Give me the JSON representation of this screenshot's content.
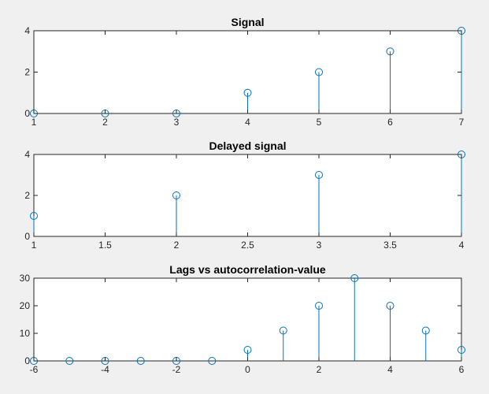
{
  "colors": {
    "series": "#0072bd",
    "background": "#f0f0f0",
    "axes": "#262626"
  },
  "chart_data": [
    {
      "type": "stem",
      "title": "Signal",
      "xlabel": "",
      "ylabel": "",
      "xlim": [
        1,
        7
      ],
      "ylim": [
        0,
        4
      ],
      "xticks": [
        1,
        2,
        3,
        4,
        5,
        6,
        7
      ],
      "xtick_labels": [
        "1",
        "2",
        "3",
        "4",
        "5",
        "6",
        "7"
      ],
      "yticks": [
        0,
        2,
        4
      ],
      "ytick_labels": [
        "0",
        "2",
        "4"
      ],
      "grid": false,
      "x": [
        1,
        2,
        3,
        4,
        5,
        6,
        7
      ],
      "y": [
        0,
        0,
        0,
        1,
        2,
        3,
        4
      ]
    },
    {
      "type": "stem",
      "title": "Delayed signal",
      "xlabel": "",
      "ylabel": "",
      "xlim": [
        1,
        4
      ],
      "ylim": [
        0,
        4
      ],
      "xticks": [
        1,
        1.5,
        2,
        2.5,
        3,
        3.5,
        4
      ],
      "xtick_labels": [
        "1",
        "1.5",
        "2",
        "2.5",
        "3",
        "3.5",
        "4"
      ],
      "yticks": [
        0,
        2,
        4
      ],
      "ytick_labels": [
        "0",
        "2",
        "4"
      ],
      "grid": false,
      "x": [
        1,
        2,
        3,
        4
      ],
      "y": [
        1,
        2,
        3,
        4
      ]
    },
    {
      "type": "stem",
      "title": "Lags vs autocorrelation-value",
      "xlabel": "",
      "ylabel": "",
      "xlim": [
        -6,
        6
      ],
      "ylim": [
        0,
        30
      ],
      "xticks": [
        -6,
        -4,
        -2,
        0,
        2,
        4,
        6
      ],
      "xtick_labels": [
        "-6",
        "-4",
        "-2",
        "0",
        "2",
        "4",
        "6"
      ],
      "yticks": [
        0,
        10,
        20,
        30
      ],
      "ytick_labels": [
        "0",
        "10",
        "20",
        "30"
      ],
      "grid": false,
      "x": [
        -6,
        -5,
        -4,
        -3,
        -2,
        -1,
        0,
        1,
        2,
        3,
        4,
        5,
        6
      ],
      "y": [
        0,
        0,
        0,
        0,
        0,
        0,
        4,
        11,
        20,
        30,
        20,
        11,
        4
      ]
    }
  ]
}
